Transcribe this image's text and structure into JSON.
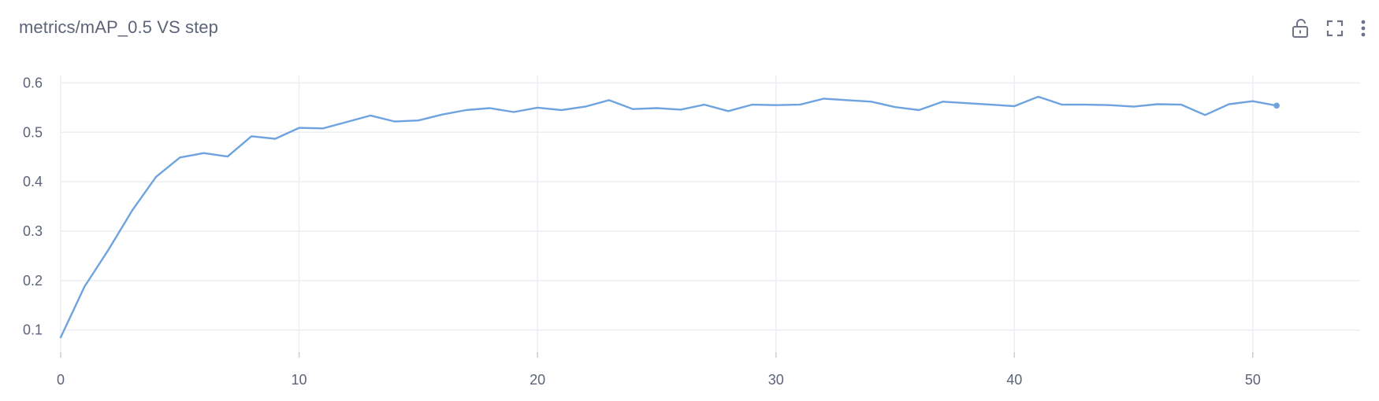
{
  "chart": {
    "title": "metrics/mAP_0.5 VS step"
  },
  "toolbar": {
    "icons": [
      "lock-open-icon",
      "fullscreen-icon",
      "more-vert-icon"
    ]
  },
  "colors": {
    "series": "#6ea3df",
    "grid": "#ebeef3",
    "text": "#5b6478",
    "icon": "#6b7385"
  },
  "chart_data": {
    "type": "line",
    "title": "metrics/mAP_0.5 VS step",
    "xlabel": "",
    "ylabel": "",
    "xlim": [
      0,
      54.5
    ],
    "ylim": [
      0.055,
      0.615
    ],
    "x_ticks": [
      0,
      10,
      20,
      30,
      40,
      50
    ],
    "y_ticks": [
      0.1,
      0.2,
      0.3,
      0.4,
      0.5,
      0.6
    ],
    "x_tick_labels": [
      "0",
      "10",
      "20",
      "30",
      "40",
      "50"
    ],
    "y_tick_labels": [
      "0.1",
      "0.2",
      "0.3",
      "0.4",
      "0.5",
      "0.6"
    ],
    "grid": true,
    "series": [
      {
        "x": [
          0,
          1,
          2,
          3,
          4,
          5,
          6,
          7,
          8,
          9,
          10,
          11,
          12,
          13,
          14,
          15,
          16,
          17,
          18,
          19,
          20,
          21,
          22,
          23,
          24,
          25,
          26,
          27,
          28,
          29,
          30,
          31,
          32,
          33,
          34,
          35,
          36,
          37,
          38,
          39,
          40,
          41,
          42,
          43,
          44,
          45,
          46,
          47,
          48,
          49,
          50,
          51
        ],
        "values": [
          0.085,
          0.188,
          0.262,
          0.342,
          0.41,
          0.449,
          0.458,
          0.451,
          0.492,
          0.487,
          0.509,
          0.508,
          0.521,
          0.534,
          0.522,
          0.524,
          0.536,
          0.545,
          0.549,
          0.541,
          0.55,
          0.545,
          0.552,
          0.565,
          0.547,
          0.549,
          0.546,
          0.556,
          0.543,
          0.556,
          0.555,
          0.556,
          0.568,
          0.565,
          0.562,
          0.551,
          0.545,
          0.562,
          0.559,
          0.556,
          0.553,
          0.572,
          0.556,
          0.556,
          0.555,
          0.552,
          0.557,
          0.556,
          0.535,
          0.557,
          0.563,
          0.554
        ]
      }
    ]
  }
}
